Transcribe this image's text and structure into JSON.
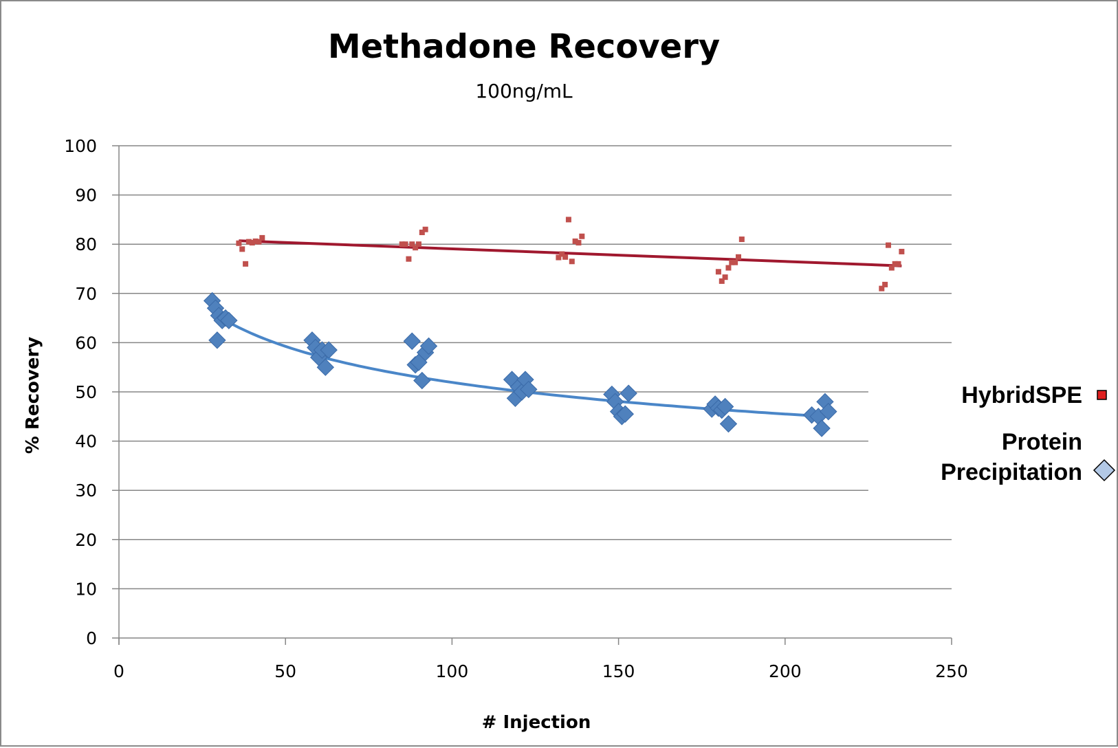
{
  "chart_data": {
    "type": "scatter",
    "title": "Methadone Recovery",
    "subtitle": "100ng/mL",
    "xlabel": "# Injection",
    "ylabel": "% Recovery",
    "xlim": [
      0,
      250
    ],
    "ylim": [
      0,
      100
    ],
    "x_ticks": [
      "0",
      "50",
      "100",
      "150",
      "200",
      "250"
    ],
    "y_ticks": [
      "0",
      "10",
      "20",
      "30",
      "40",
      "50",
      "60",
      "70",
      "80",
      "90",
      "100"
    ],
    "grid": "horizontal",
    "legend_position": "right",
    "series": [
      {
        "name": "HybridSPE",
        "marker": "square",
        "color": "#c0504d",
        "trendline": {
          "type": "linear",
          "color": "#a0182e",
          "from": [
            36,
            80.7
          ],
          "to": [
            235,
            75.6
          ]
        },
        "points": [
          [
            36,
            80.2
          ],
          [
            37,
            79
          ],
          [
            38,
            76
          ],
          [
            39,
            80.5
          ],
          [
            40,
            80.3
          ],
          [
            41,
            80.6
          ],
          [
            42,
            80.5
          ],
          [
            43,
            81.3
          ],
          [
            85,
            80
          ],
          [
            86,
            80
          ],
          [
            87,
            77
          ],
          [
            88,
            80
          ],
          [
            89,
            79.3
          ],
          [
            90,
            80
          ],
          [
            91,
            82.4
          ],
          [
            92,
            83
          ],
          [
            132,
            77.3
          ],
          [
            133,
            78
          ],
          [
            134,
            77.4
          ],
          [
            135,
            85
          ],
          [
            136,
            76.5
          ],
          [
            137,
            80.6
          ],
          [
            138,
            80.3
          ],
          [
            139,
            81.6
          ],
          [
            180,
            74.4
          ],
          [
            181,
            72.5
          ],
          [
            182,
            73.3
          ],
          [
            183,
            75.2
          ],
          [
            184,
            76.3
          ],
          [
            185,
            76.3
          ],
          [
            186,
            77.4
          ],
          [
            187,
            81
          ],
          [
            229,
            71
          ],
          [
            230,
            71.8
          ],
          [
            231,
            79.8
          ],
          [
            232,
            75.2
          ],
          [
            233,
            76
          ],
          [
            234,
            76
          ],
          [
            235,
            78.5
          ]
        ]
      },
      {
        "name": "Protein Precipitation",
        "marker": "diamond",
        "color": "#4f81bd",
        "trendline": {
          "type": "power",
          "color": "#4a86c8",
          "from": [
            32,
            64.5
          ],
          "to": [
            212,
            45
          ]
        },
        "points": [
          [
            28,
            68.5
          ],
          [
            29,
            67
          ],
          [
            29.5,
            60.5
          ],
          [
            30,
            65.5
          ],
          [
            31,
            64.5
          ],
          [
            32,
            65
          ],
          [
            33,
            64.5
          ],
          [
            58,
            60.5
          ],
          [
            59,
            59
          ],
          [
            60,
            57
          ],
          [
            61,
            58.5
          ],
          [
            62,
            55
          ],
          [
            63,
            58.5
          ],
          [
            88,
            60.3
          ],
          [
            89,
            55.5
          ],
          [
            90,
            56
          ],
          [
            91,
            52.3
          ],
          [
            92,
            58
          ],
          [
            93,
            59.3
          ],
          [
            118,
            52.5
          ],
          [
            119,
            48.7
          ],
          [
            120,
            51
          ],
          [
            121,
            50
          ],
          [
            122,
            52.5
          ],
          [
            123,
            50.5
          ],
          [
            148,
            49.5
          ],
          [
            149,
            48
          ],
          [
            150,
            46
          ],
          [
            151,
            45
          ],
          [
            152,
            45.5
          ],
          [
            153,
            49.7
          ],
          [
            178,
            46.5
          ],
          [
            179,
            47.5
          ],
          [
            180,
            46.7
          ],
          [
            181,
            46.3
          ],
          [
            182,
            47
          ],
          [
            183,
            43.5
          ],
          [
            208,
            45.3
          ],
          [
            210,
            45
          ],
          [
            211,
            42.6
          ],
          [
            212,
            48
          ],
          [
            213,
            46
          ]
        ]
      }
    ]
  }
}
